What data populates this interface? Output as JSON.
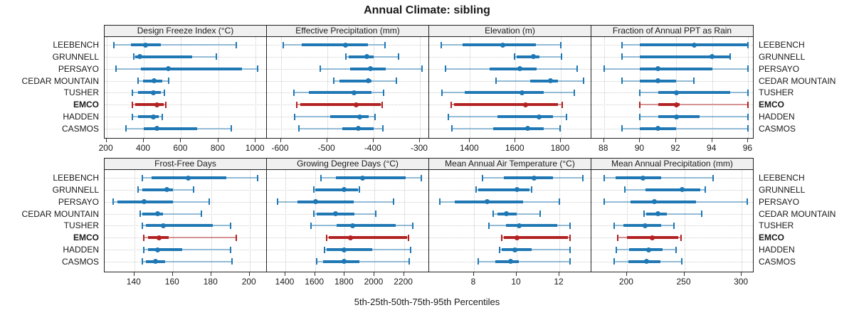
{
  "title": "Annual Climate: sibling",
  "caption": "5th-25th-50th-75th-95th Percentiles",
  "colors": {
    "series": "#1f78b4",
    "highlight": "#b22222",
    "panel_header_bg": "#f0f0f0",
    "border": "#222222",
    "grid": "#cccccc"
  },
  "chart_data": {
    "type": "box",
    "title": "Annual Climate: sibling",
    "xlabel": "5th-25th-50th-75th-95th Percentiles",
    "percentiles": [
      5,
      25,
      50,
      75,
      95
    ],
    "grid": "dotted",
    "legend_position": "none",
    "sites": [
      "LEEBENCH",
      "GRUNNELL",
      "PERSAYO",
      "CEDAR MOUNTAIN",
      "TUSHER",
      "EMCO",
      "HADDEN",
      "CASMOS"
    ],
    "highlighted_site": "EMCO",
    "panels": [
      {
        "title": "Design Freeze Index (°C)",
        "row": 0,
        "col": 0,
        "xlim": [
          190,
          1060
        ],
        "ticks": [
          200,
          400,
          600,
          800,
          1000
        ],
        "values": {
          "LEEBENCH": [
            240,
            330,
            410,
            490,
            895
          ],
          "GRUNNELL": [
            345,
            355,
            380,
            660,
            790
          ],
          "PERSAYO": [
            250,
            385,
            530,
            925,
            1010
          ],
          "CEDAR MOUNTAIN": [
            370,
            395,
            455,
            500,
            535
          ],
          "TUSHER": [
            340,
            370,
            453,
            490,
            510
          ],
          "EMCO": [
            340,
            355,
            470,
            505,
            520
          ],
          "HADDEN": [
            340,
            370,
            450,
            480,
            500
          ],
          "CASMOS": [
            305,
            400,
            470,
            685,
            870
          ]
        }
      },
      {
        "title": "Effective Precipitation (mm)",
        "row": 0,
        "col": 1,
        "xlim": [
          -630,
          -280
        ],
        "ticks": [
          -600,
          -500,
          -400,
          -300
        ],
        "values": {
          "LEEBENCH": [
            -595,
            -555,
            -461,
            -412,
            -375
          ],
          "GRUNNELL": [
            -459,
            -454,
            -414,
            -400,
            -346
          ],
          "PERSAYO": [
            -515,
            -450,
            -406,
            -374,
            -295
          ],
          "CEDAR MOUNTAIN": [
            -486,
            -473,
            -412,
            -404,
            -351
          ],
          "TUSHER": [
            -571,
            -540,
            -442,
            -405,
            -378
          ],
          "EMCO": [
            -566,
            -558,
            -438,
            -385,
            -381
          ],
          "HADDEN": [
            -570,
            -493,
            -430,
            -410,
            -396
          ],
          "CASMOS": [
            -561,
            -468,
            -432,
            -400,
            -380
          ]
        }
      },
      {
        "title": "Elevation (m)",
        "row": 0,
        "col": 2,
        "xlim": [
          1220,
          1935
        ],
        "ticks": [
          1400,
          1600,
          1800
        ],
        "values": {
          "LEEBENCH": [
            1272,
            1366,
            1546,
            1689,
            1801
          ],
          "GRUNNELL": [
            1595,
            1605,
            1678,
            1706,
            1803
          ],
          "PERSAYO": [
            1291,
            1486,
            1621,
            1695,
            1871
          ],
          "CEDAR MOUNTAIN": [
            1515,
            1664,
            1756,
            1789,
            1902
          ],
          "TUSHER": [
            1275,
            1376,
            1629,
            1725,
            1861
          ],
          "EMCO": [
            1316,
            1330,
            1645,
            1788,
            1806
          ],
          "HADDEN": [
            1304,
            1522,
            1704,
            1767,
            1824
          ],
          "CASMOS": [
            1319,
            1501,
            1655,
            1725,
            1798
          ]
        }
      },
      {
        "title": "Fraction of Annual PPT as Rain",
        "row": 0,
        "col": 3,
        "xlim": [
          87.3,
          96.3
        ],
        "ticks": [
          88,
          90,
          92,
          94,
          96
        ],
        "values": {
          "LEEBENCH": [
            89,
            90,
            93,
            96,
            96
          ],
          "GRUNNELL": [
            89,
            90,
            94,
            95,
            95
          ],
          "PERSAYO": [
            88,
            90,
            91,
            94,
            96
          ],
          "CEDAR MOUNTAIN": [
            89,
            90,
            91,
            92,
            93
          ],
          "TUSHER": [
            90,
            91,
            92,
            95,
            96
          ],
          "EMCO": [
            90,
            91,
            92,
            92.2,
            96
          ],
          "HADDEN": [
            90,
            91,
            92,
            93.3,
            96
          ],
          "CASMOS": [
            89,
            90,
            91,
            92,
            96
          ]
        }
      },
      {
        "title": "Frost-Free Days",
        "row": 1,
        "col": 0,
        "xlim": [
          124.5,
          209
        ],
        "ticks": [
          140,
          160,
          180,
          200
        ],
        "values": {
          "LEEBENCH": [
            144,
            149,
            168,
            188,
            204
          ],
          "GRUNNELL": [
            142,
            144,
            157,
            160,
            171
          ],
          "PERSAYO": [
            129,
            131,
            145,
            160,
            179
          ],
          "CEDAR MOUNTAIN": [
            143,
            144,
            152,
            155,
            175
          ],
          "TUSHER": [
            144,
            146,
            155,
            181,
            190
          ],
          "EMCO": [
            145,
            147,
            153,
            158,
            193
          ],
          "HADDEN": [
            145,
            147,
            152,
            165,
            190
          ],
          "CASMOS": [
            144,
            146,
            151,
            156,
            191
          ]
        }
      },
      {
        "title": "Growing Degree Days (°C)",
        "row": 1,
        "col": 1,
        "xlim": [
          1275,
          2370
        ],
        "ticks": [
          1400,
          1600,
          1800,
          2000,
          2200
        ],
        "values": {
          "LEEBENCH": [
            1640,
            1740,
            1920,
            2210,
            2315
          ],
          "GRUNNELL": [
            1590,
            1600,
            1795,
            1890,
            1900
          ],
          "PERSAYO": [
            1345,
            1480,
            1605,
            1860,
            2130
          ],
          "CEDAR MOUNTAIN": [
            1590,
            1610,
            1740,
            1865,
            2010
          ],
          "TUSHER": [
            1575,
            1745,
            1855,
            2145,
            2260
          ],
          "EMCO": [
            1680,
            1695,
            1840,
            2220,
            2230
          ],
          "HADDEN": [
            1665,
            1680,
            1795,
            1985,
            2245
          ],
          "CASMOS": [
            1610,
            1655,
            1795,
            1900,
            2235
          ]
        }
      },
      {
        "title": "Mean Annual Air Temperature (°C)",
        "row": 1,
        "col": 2,
        "xlim": [
          5.9,
          13.5
        ],
        "ticks": [
          8,
          10,
          12
        ],
        "values": {
          "LEEBENCH": [
            8.4,
            9.4,
            10.8,
            11.7,
            13.1
          ],
          "GRUNNELL": [
            8.1,
            8.2,
            10.0,
            10.6,
            10.7
          ],
          "PERSAYO": [
            6.4,
            7.1,
            8.6,
            10.3,
            12.0
          ],
          "CEDAR MOUNTAIN": [
            8.9,
            9.1,
            9.5,
            10.0,
            11.1
          ],
          "TUSHER": [
            8.7,
            9.5,
            10.1,
            11.9,
            12.5
          ],
          "EMCO": [
            9.3,
            9.4,
            10.0,
            12.4,
            12.5
          ],
          "HADDEN": [
            9.2,
            9.3,
            9.9,
            10.7,
            12.5
          ],
          "CASMOS": [
            8.2,
            9.0,
            9.7,
            10.1,
            12.5
          ]
        }
      },
      {
        "title": "Mean Annual Precipitation (mm)",
        "row": 1,
        "col": 3,
        "xlim": [
          169,
          310.5
        ],
        "ticks": [
          200,
          250,
          300
        ],
        "values": {
          "LEEBENCH": [
            180,
            190,
            214,
            230,
            275
          ],
          "GRUNNELL": [
            198,
            216,
            248,
            264,
            268
          ],
          "PERSAYO": [
            180,
            203,
            224,
            260,
            305
          ],
          "CEDAR MOUNTAIN": [
            215,
            217,
            227,
            235,
            265
          ],
          "TUSHER": [
            189,
            197,
            216,
            230,
            241
          ],
          "EMCO": [
            192,
            200,
            222,
            245,
            247
          ],
          "HADDEN": [
            191,
            202,
            219,
            231,
            243
          ],
          "CASMOS": [
            189,
            201,
            217,
            229,
            248
          ]
        }
      }
    ]
  }
}
